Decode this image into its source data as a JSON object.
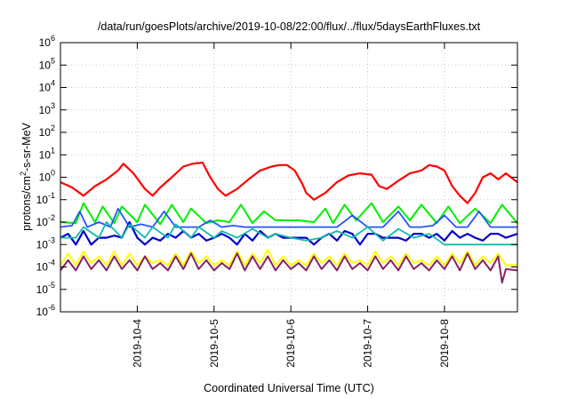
{
  "chart_data": {
    "type": "line",
    "title": "/data/run/goesPlots/archive/2019-10-08/22:00/flux/../flux/5daysEarthFluxes.txt",
    "xlabel": "Coordinated Universal Time (UTC)",
    "ylabel_base": "protons/cm",
    "ylabel_exp": "2",
    "ylabel_rest": "-s-sr-MeV",
    "yscale": "log",
    "ylim": [
      1e-06,
      1000000.0
    ],
    "xlim": [
      3.0,
      8.95
    ],
    "grid": true,
    "y_ticks": [
      {
        "value": -6,
        "base": "10",
        "exp": "-6"
      },
      {
        "value": -5,
        "base": "10",
        "exp": "-5"
      },
      {
        "value": -4,
        "base": "10",
        "exp": "-4"
      },
      {
        "value": -3,
        "base": "10",
        "exp": "-3"
      },
      {
        "value": -2,
        "base": "10",
        "exp": "-2"
      },
      {
        "value": -1,
        "base": "10",
        "exp": "-1"
      },
      {
        "value": 0,
        "base": "10",
        "exp": "0"
      },
      {
        "value": 1,
        "base": "10",
        "exp": "1"
      },
      {
        "value": 2,
        "base": "10",
        "exp": "2"
      },
      {
        "value": 3,
        "base": "10",
        "exp": "3"
      },
      {
        "value": 4,
        "base": "10",
        "exp": "4"
      },
      {
        "value": 5,
        "base": "10",
        "exp": "5"
      },
      {
        "value": 6,
        "base": "10",
        "exp": "6"
      }
    ],
    "x_ticks": [
      {
        "value": 4,
        "label": "2019-10-4"
      },
      {
        "value": 5,
        "label": "2019-10-5"
      },
      {
        "value": 6,
        "label": "2019-10-6"
      },
      {
        "value": 7,
        "label": "2019-10-7"
      },
      {
        "value": 8,
        "label": "2019-10-8"
      }
    ],
    "series": [
      {
        "color": "#ff0000",
        "width": 2.2,
        "x": [
          3.0,
          3.15,
          3.3,
          3.45,
          3.6,
          3.75,
          3.82,
          3.95,
          4.1,
          4.2,
          4.3,
          4.45,
          4.6,
          4.72,
          4.85,
          4.95,
          5.05,
          5.15,
          5.3,
          5.45,
          5.6,
          5.75,
          5.85,
          5.95,
          6.05,
          6.15,
          6.2,
          6.3,
          6.45,
          6.6,
          6.75,
          6.9,
          7.05,
          7.15,
          7.25,
          7.4,
          7.55,
          7.7,
          7.8,
          7.9,
          8.0,
          8.1,
          8.2,
          8.3,
          8.4,
          8.5,
          8.6,
          8.7,
          8.8,
          8.95
        ],
        "y": [
          0.6,
          0.35,
          0.15,
          0.4,
          0.8,
          2.0,
          4.0,
          1.5,
          0.3,
          0.15,
          0.35,
          1.0,
          3.0,
          4.0,
          4.5,
          1.0,
          0.3,
          0.15,
          0.3,
          0.8,
          2.0,
          3.0,
          3.5,
          3.5,
          2.0,
          0.5,
          0.2,
          0.1,
          0.2,
          0.6,
          1.2,
          1.5,
          1.3,
          0.4,
          0.3,
          0.7,
          1.5,
          2.0,
          3.5,
          3.0,
          2.0,
          0.4,
          0.15,
          0.07,
          0.2,
          1.0,
          1.5,
          0.8,
          1.5,
          0.6
        ]
      },
      {
        "color": "#00ee00",
        "width": 2.0,
        "x": [
          3.0,
          3.2,
          3.3,
          3.45,
          3.55,
          3.7,
          3.8,
          4.0,
          4.1,
          4.3,
          4.45,
          4.6,
          4.7,
          4.9,
          5.05,
          5.2,
          5.35,
          5.5,
          5.65,
          5.8,
          5.95,
          6.1,
          6.3,
          6.45,
          6.55,
          6.7,
          6.85,
          7.05,
          7.2,
          7.4,
          7.55,
          7.7,
          7.9,
          8.05,
          8.2,
          8.4,
          8.6,
          8.75,
          8.95
        ],
        "y": [
          0.01,
          0.009,
          0.07,
          0.01,
          0.05,
          0.009,
          0.05,
          0.01,
          0.06,
          0.008,
          0.06,
          0.01,
          0.04,
          0.009,
          0.012,
          0.01,
          0.06,
          0.009,
          0.03,
          0.012,
          0.012,
          0.012,
          0.01,
          0.04,
          0.009,
          0.06,
          0.012,
          0.07,
          0.01,
          0.05,
          0.012,
          0.06,
          0.009,
          0.05,
          0.009,
          0.04,
          0.009,
          0.06,
          0.009
        ]
      },
      {
        "color": "#2255ff",
        "width": 1.8,
        "x": [
          3.0,
          3.15,
          3.25,
          3.35,
          3.5,
          3.65,
          3.75,
          3.9,
          4.05,
          4.2,
          4.35,
          4.5,
          4.65,
          4.8,
          4.95,
          5.1,
          5.25,
          5.4,
          5.55,
          5.7,
          5.85,
          6.0,
          6.2,
          6.4,
          6.6,
          6.8,
          7.0,
          7.2,
          7.4,
          7.55,
          7.7,
          7.85,
          8.0,
          8.15,
          8.3,
          8.45,
          8.6,
          8.75,
          8.95
        ],
        "y": [
          0.006,
          0.007,
          0.03,
          0.006,
          0.01,
          0.006,
          0.04,
          0.006,
          0.008,
          0.006,
          0.03,
          0.006,
          0.006,
          0.006,
          0.012,
          0.006,
          0.007,
          0.006,
          0.006,
          0.006,
          0.006,
          0.006,
          0.006,
          0.006,
          0.006,
          0.02,
          0.006,
          0.006,
          0.03,
          0.006,
          0.006,
          0.007,
          0.02,
          0.006,
          0.006,
          0.03,
          0.006,
          0.006,
          0.006
        ]
      },
      {
        "color": "#0000cc",
        "width": 2.2,
        "x": [
          3.0,
          3.1,
          3.2,
          3.3,
          3.4,
          3.5,
          3.6,
          3.7,
          3.8,
          3.9,
          4.0,
          4.1,
          4.2,
          4.3,
          4.4,
          4.5,
          4.6,
          4.7,
          4.8,
          4.9,
          5.0,
          5.1,
          5.2,
          5.3,
          5.4,
          5.5,
          5.6,
          5.7,
          5.8,
          5.9,
          6.0,
          6.1,
          6.2,
          6.3,
          6.4,
          6.5,
          6.6,
          6.7,
          6.8,
          6.9,
          7.0,
          7.1,
          7.2,
          7.3,
          7.4,
          7.5,
          7.6,
          7.7,
          7.8,
          7.9,
          8.0,
          8.1,
          8.2,
          8.3,
          8.4,
          8.5,
          8.6,
          8.7,
          8.8,
          8.95
        ],
        "y": [
          0.002,
          0.003,
          0.001,
          0.004,
          0.001,
          0.002,
          0.002,
          0.0025,
          0.002,
          0.01,
          0.002,
          0.001,
          0.002,
          0.0015,
          0.003,
          0.002,
          0.004,
          0.002,
          0.003,
          0.0015,
          0.002,
          0.003,
          0.002,
          0.001,
          0.003,
          0.0015,
          0.004,
          0.002,
          0.003,
          0.002,
          0.002,
          0.002,
          0.002,
          0.001,
          0.002,
          0.003,
          0.0015,
          0.004,
          0.003,
          0.001,
          0.003,
          0.003,
          0.002,
          0.002,
          0.002,
          0.0015,
          0.003,
          0.003,
          0.002,
          0.003,
          0.0015,
          0.004,
          0.002,
          0.003,
          0.002,
          0.0015,
          0.003,
          0.003,
          0.002,
          0.003
        ]
      },
      {
        "color": "#11bbaa",
        "width": 1.8,
        "x": [
          3.0,
          3.2,
          3.3,
          3.5,
          3.6,
          3.8,
          3.9,
          4.1,
          4.2,
          4.4,
          4.5,
          4.7,
          4.8,
          5.0,
          5.1,
          5.3,
          5.5,
          5.7,
          5.8,
          6.0,
          6.2,
          6.4,
          6.6,
          6.8,
          7.0,
          7.2,
          7.4,
          7.6,
          7.8,
          8.0,
          8.2,
          8.4,
          8.6,
          8.8,
          8.95
        ],
        "y": [
          0.002,
          0.002,
          0.006,
          0.002,
          0.01,
          0.002,
          0.008,
          0.002,
          0.006,
          0.002,
          0.008,
          0.002,
          0.006,
          0.002,
          0.004,
          0.002,
          0.005,
          0.002,
          0.003,
          0.002,
          0.0015,
          0.002,
          0.004,
          0.002,
          0.006,
          0.0015,
          0.005,
          0.002,
          0.003,
          0.001,
          0.001,
          0.001,
          0.001,
          0.001,
          0.001
        ]
      },
      {
        "color": "#ffff00",
        "width": 2.0,
        "x": [
          3.0,
          3.1,
          3.2,
          3.3,
          3.4,
          3.5,
          3.6,
          3.7,
          3.8,
          3.9,
          4.0,
          4.1,
          4.2,
          4.3,
          4.4,
          4.5,
          4.6,
          4.7,
          4.8,
          4.9,
          5.0,
          5.1,
          5.2,
          5.3,
          5.4,
          5.5,
          5.6,
          5.7,
          5.8,
          5.9,
          6.0,
          6.1,
          6.2,
          6.3,
          6.4,
          6.5,
          6.6,
          6.7,
          6.8,
          6.9,
          7.0,
          7.1,
          7.2,
          7.3,
          7.4,
          7.5,
          7.6,
          7.7,
          7.8,
          7.9,
          8.0,
          8.1,
          8.2,
          8.3,
          8.4,
          8.5,
          8.6,
          8.7,
          8.8,
          8.95
        ],
        "y": [
          0.00012,
          0.0004,
          0.00012,
          0.0005,
          0.00015,
          0.0003,
          0.00012,
          0.0005,
          0.00012,
          0.0004,
          0.00012,
          0.0003,
          0.00015,
          0.0002,
          0.00012,
          0.0004,
          0.00012,
          0.0005,
          0.00015,
          0.0003,
          0.00012,
          0.0002,
          0.00012,
          0.0005,
          0.00012,
          0.0004,
          0.00015,
          0.0006,
          0.00012,
          0.0003,
          0.00012,
          0.0002,
          0.00012,
          0.0004,
          0.00015,
          0.0003,
          0.00012,
          0.0004,
          0.00015,
          0.0002,
          0.00012,
          0.0005,
          0.00015,
          0.0003,
          0.00012,
          0.0004,
          0.00015,
          0.0002,
          0.00012,
          0.0003,
          0.00012,
          0.0004,
          0.00015,
          0.0005,
          0.00012,
          0.0003,
          0.00015,
          0.0004,
          0.00012,
          0.00012
        ]
      },
      {
        "color": "#882266",
        "width": 2.0,
        "x": [
          3.0,
          3.1,
          3.2,
          3.3,
          3.4,
          3.5,
          3.6,
          3.7,
          3.8,
          3.9,
          4.0,
          4.1,
          4.2,
          4.3,
          4.4,
          4.5,
          4.6,
          4.7,
          4.8,
          4.9,
          5.0,
          5.1,
          5.2,
          5.3,
          5.4,
          5.5,
          5.6,
          5.7,
          5.8,
          5.9,
          6.0,
          6.1,
          6.2,
          6.3,
          6.4,
          6.5,
          6.6,
          6.7,
          6.8,
          6.9,
          7.0,
          7.1,
          7.2,
          7.3,
          7.4,
          7.5,
          7.6,
          7.7,
          7.8,
          7.9,
          8.0,
          8.1,
          8.2,
          8.3,
          8.4,
          8.5,
          8.6,
          8.7,
          8.75,
          8.8,
          8.95
        ],
        "y": [
          7e-05,
          0.0002,
          7e-05,
          0.0003,
          8e-05,
          0.0002,
          7e-05,
          0.0003,
          8e-05,
          0.0002,
          7e-05,
          0.0003,
          8e-05,
          0.00015,
          7e-05,
          0.0003,
          8e-05,
          0.0004,
          8e-05,
          0.0002,
          7e-05,
          0.00015,
          8e-05,
          0.0004,
          7e-05,
          0.0003,
          8e-05,
          0.0003,
          7e-05,
          0.0002,
          8e-05,
          0.00015,
          7e-05,
          0.0003,
          8e-05,
          0.0002,
          7e-05,
          0.0003,
          8e-05,
          0.00015,
          7e-05,
          0.0003,
          8e-05,
          0.0002,
          7e-05,
          0.0003,
          8e-05,
          0.00015,
          7e-05,
          0.0002,
          8e-05,
          0.0003,
          7e-05,
          0.0004,
          8e-05,
          0.0002,
          7e-05,
          0.0003,
          2e-05,
          8e-05,
          7e-05
        ]
      }
    ]
  }
}
